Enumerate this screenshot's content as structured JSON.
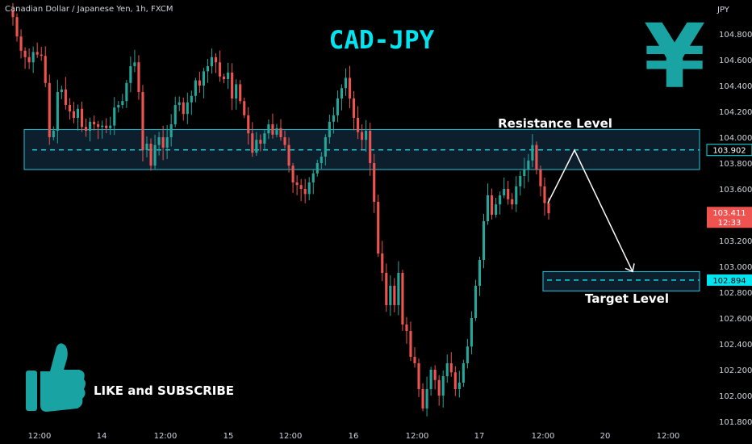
{
  "header": {
    "symbol_line": "Canadian Dollar / Japanese Yen, 1h, FXCM",
    "currency": "JPY"
  },
  "annotations": {
    "title": "CAD-JPY",
    "resistance_label": "Resistance Level",
    "target_label": "Target Level",
    "like_subscribe": "LIKE and SUBSCRIBE",
    "yen_symbol": "¥"
  },
  "badges": {
    "resistance_price": "103.902",
    "current_price": "103.411",
    "countdown": "12:33",
    "target_price": "102.894"
  },
  "colors": {
    "background": "#000000",
    "up": "#26a69a",
    "down": "#ef5350",
    "accent": "#00e5f0",
    "zone_border": "#26c6da",
    "zone_fill": "#0d1e2c",
    "icon": "#1aa3a3"
  },
  "chart_data": {
    "type": "candlestick",
    "title": "CAD-JPY",
    "ylabel": "JPY",
    "ylim": [
      101.75,
      104.95
    ],
    "y_ticks": [
      101.8,
      102.0,
      102.2,
      102.4,
      102.6,
      102.8,
      103.0,
      103.2,
      103.4,
      103.6,
      103.8,
      104.0,
      104.2,
      104.4,
      104.6,
      104.8
    ],
    "y_tick_labels": [
      "101.800",
      "102.000",
      "102.200",
      "102.400",
      "102.600",
      "102.800",
      "103.000",
      "103.200",
      "103.400",
      "103.600",
      "103.800",
      "104.000",
      "104.200",
      "104.400",
      "104.600",
      "104.800"
    ],
    "x_tick_labels": [
      "12:00",
      "14",
      "12:00",
      "15",
      "12:00",
      "16",
      "12:00",
      "17",
      "12:00",
      "20",
      "12:00"
    ],
    "resistance_zone": [
      103.75,
      104.06
    ],
    "resistance_level": 103.902,
    "target_zone": [
      102.81,
      102.96
    ],
    "target_level": 102.894,
    "last_price": 103.411,
    "projection": [
      [
        103.49,
        103.9
      ],
      [
        102.96
      ]
    ],
    "closes": [
      104.93,
      104.78,
      104.67,
      104.62,
      104.58,
      104.66,
      104.64,
      104.63,
      104.42,
      104.0,
      104.05,
      104.35,
      104.37,
      104.25,
      104.2,
      104.15,
      104.22,
      104.08,
      104.05,
      104.12,
      104.1,
      104.08,
      104.09,
      104.07,
      104.09,
      104.23,
      104.25,
      104.28,
      104.42,
      104.55,
      104.58,
      104.35,
      103.9,
      103.95,
      103.78,
      103.94,
      104.0,
      103.92,
      104.0,
      104.1,
      104.25,
      104.27,
      104.18,
      104.27,
      104.32,
      104.44,
      104.4,
      104.51,
      104.55,
      104.62,
      104.58,
      104.47,
      104.45,
      104.5,
      104.3,
      104.41,
      104.28,
      104.17,
      104.03,
      103.88,
      103.98,
      103.95,
      104.03,
      104.1,
      104.02,
      104.07,
      104.0,
      103.94,
      103.78,
      103.65,
      103.63,
      103.6,
      103.56,
      103.65,
      103.72,
      103.8,
      103.85,
      104.0,
      104.12,
      104.17,
      104.3,
      104.38,
      104.46,
      104.3,
      104.15,
      104.04,
      103.98,
      104.05,
      103.8,
      103.5,
      103.1,
      102.95,
      102.7,
      102.85,
      102.7,
      102.95,
      102.55,
      102.5,
      102.3,
      102.25,
      102.05,
      101.9,
      102.05,
      102.2,
      102.12,
      102.0,
      102.15,
      102.25,
      102.18,
      102.05,
      102.1,
      102.25,
      102.38,
      102.6,
      102.85,
      103.05,
      103.35,
      103.55,
      103.4,
      103.48,
      103.55,
      103.6,
      103.52,
      103.48,
      103.62,
      103.7,
      103.75,
      103.82,
      103.94,
      103.75,
      103.62,
      103.49,
      103.411
    ]
  }
}
